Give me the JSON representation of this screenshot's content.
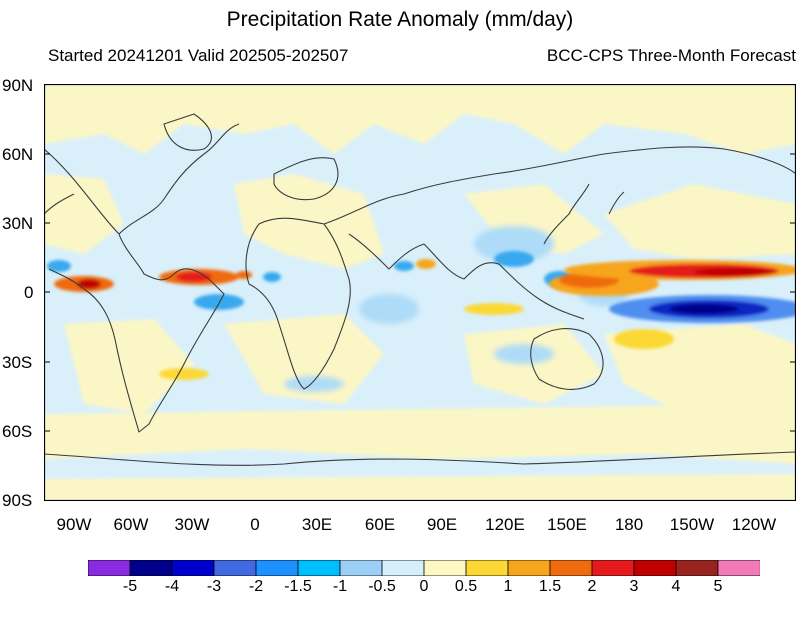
{
  "header": {
    "title": "Precipitation Rate Anomaly (mm/day)",
    "subtitle_left": "Started 20241201  Valid 202505-202507",
    "subtitle_right": "BCC-CPS Three-Month Forecast"
  },
  "axes": {
    "lat_labels": [
      "90N",
      "60N",
      "30N",
      "0",
      "30S",
      "60S",
      "90S"
    ],
    "lon_labels": [
      "90W",
      "60W",
      "30W",
      "0",
      "30E",
      "60E",
      "90E",
      "120E",
      "150E",
      "180",
      "150W",
      "120W"
    ]
  },
  "legend": {
    "boundaries": [
      "-5",
      "-4",
      "-3",
      "-2",
      "-1.5",
      "-1",
      "-0.5",
      "0",
      "0.5",
      "1",
      "1.5",
      "2",
      "3",
      "4",
      "5"
    ],
    "colors": [
      "#8a2be2",
      "#00008b",
      "#0000cd",
      "#4169e1",
      "#1e90ff",
      "#00bfff",
      "#9ccff5",
      "#d6f0fb",
      "#fdf8c4",
      "#fcd835",
      "#f7a51c",
      "#f06a10",
      "#e41a1c",
      "#c00000",
      "#98231f",
      "#f27ab8"
    ]
  },
  "map": {
    "background_color": "#d9f0fb",
    "positive_light_color": "#fbf6c6",
    "coastline_color": "#3b3b3b"
  }
}
